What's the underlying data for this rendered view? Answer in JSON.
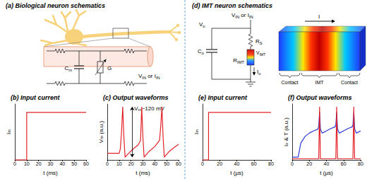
{
  "panels": {
    "a": {
      "title": "(a) Biological neuron schematics",
      "capacitance": [
        "C",
        {
          "sub": "m"
        }
      ],
      "conductance": [
        "G"
      ],
      "source": [
        "V",
        {
          "sub": "IN"
        },
        " or I",
        {
          "sub": "IN"
        }
      ]
    },
    "d": {
      "title": "(d) IMT neuron schematics",
      "source": [
        "V",
        {
          "sub": "IN"
        },
        " or I",
        {
          "sub": "IN"
        }
      ],
      "output_voltage": [
        "V",
        {
          "sub": "o"
        }
      ],
      "capacitor": [
        "C",
        {
          "sub": "o"
        }
      ],
      "series_resistor": [
        "R",
        {
          "sub": "S"
        }
      ],
      "imt_voltage": [
        "V",
        {
          "sub": "IMT"
        }
      ],
      "imt_resistor": [
        "R",
        {
          "sub": "IMT"
        }
      ],
      "output_current": [
        "I",
        {
          "sub": "o"
        }
      ],
      "current": [
        "I"
      ],
      "regions": [
        "Contact",
        "IMT",
        "Contact"
      ]
    }
  },
  "chart_data": [
    {
      "type": "line",
      "title": "(b) Input current",
      "xlabel": "t (ms)",
      "ylabel": [
        "I",
        {
          "sub": "in"
        }
      ],
      "xlim": [
        0,
        60
      ],
      "xticks": [
        0,
        10,
        20,
        30,
        40,
        50,
        60
      ],
      "ylim": [
        0,
        1
      ],
      "tick_labels": "x",
      "series": [
        {
          "color": "#e32228",
          "x": [
            0,
            10,
            10,
            60
          ],
          "values": [
            0,
            0,
            0.85,
            0.85
          ]
        }
      ]
    },
    {
      "type": "line",
      "title": "(c) Output waveforms",
      "xlabel": "t (ms)",
      "ylabel": [
        "V",
        {
          "sub": "m"
        },
        " (a.u.)"
      ],
      "annotation": [
        "V",
        {
          "sub": "m"
        },
        "~120 mV"
      ],
      "xlim": [
        0,
        60
      ],
      "xticks": [
        0,
        10,
        20,
        30,
        40,
        50,
        60
      ],
      "ylim": [
        0,
        1
      ],
      "tick_labels": "x",
      "series": [
        {
          "color": "#e32228",
          "x": [
            0,
            10,
            11,
            12,
            13,
            14,
            15,
            18,
            22,
            26,
            28,
            29,
            30,
            31,
            35,
            40,
            44,
            45,
            46,
            47,
            48,
            52,
            56,
            60
          ],
          "values": [
            0.12,
            0.12,
            0.2,
            0.5,
            0.95,
            0.4,
            0.05,
            0.12,
            0.2,
            0.27,
            0.35,
            0.95,
            0.4,
            0.05,
            0.15,
            0.24,
            0.35,
            0.6,
            0.95,
            0.4,
            0.05,
            0.15,
            0.22,
            0.28
          ]
        }
      ]
    },
    {
      "type": "line",
      "title": "(e) Input current",
      "xlabel": "t (μs)",
      "ylabel": [
        "I",
        {
          "sub": "in"
        }
      ],
      "xlim": [
        0,
        80
      ],
      "xticks": [
        0,
        20,
        40,
        60,
        80
      ],
      "ylim": [
        0,
        1
      ],
      "tick_labels": "x",
      "series": [
        {
          "color": "#e32228",
          "x": [
            0,
            7,
            7,
            80
          ],
          "values": [
            0,
            0,
            0.85,
            0.85
          ]
        }
      ]
    },
    {
      "type": "line",
      "title": "(f) Output waveforms",
      "xlabel": "t (μs)",
      "ylabel": [
        "I",
        {
          "sub": "o"
        },
        " & T (a.u.)"
      ],
      "xlim": [
        0,
        80
      ],
      "xticks": [
        0,
        20,
        40,
        60,
        80
      ],
      "ylim": [
        0,
        1
      ],
      "tick_labels": "x",
      "series": [
        {
          "color": "#2a3bd6",
          "x": [
            0,
            7,
            10,
            15,
            20,
            25,
            30,
            31,
            32,
            33,
            35,
            40,
            45,
            50,
            51,
            52,
            53,
            55,
            60,
            65,
            70,
            71,
            72,
            73,
            75,
            80
          ],
          "values": [
            0.05,
            0.05,
            0.3,
            0.42,
            0.48,
            0.52,
            0.55,
            0.6,
            0.85,
            0.55,
            0.48,
            0.52,
            0.56,
            0.59,
            0.63,
            0.85,
            0.55,
            0.48,
            0.52,
            0.56,
            0.59,
            0.63,
            0.85,
            0.55,
            0.48,
            0.52
          ]
        },
        {
          "color": "#e32228",
          "x": [
            0,
            31,
            32,
            33,
            51,
            52,
            53,
            71,
            72,
            73,
            80
          ],
          "values": [
            0.02,
            0.02,
            0.95,
            0.02,
            0.02,
            0.95,
            0.02,
            0.02,
            0.95,
            0.02,
            0.02
          ]
        }
      ]
    }
  ]
}
